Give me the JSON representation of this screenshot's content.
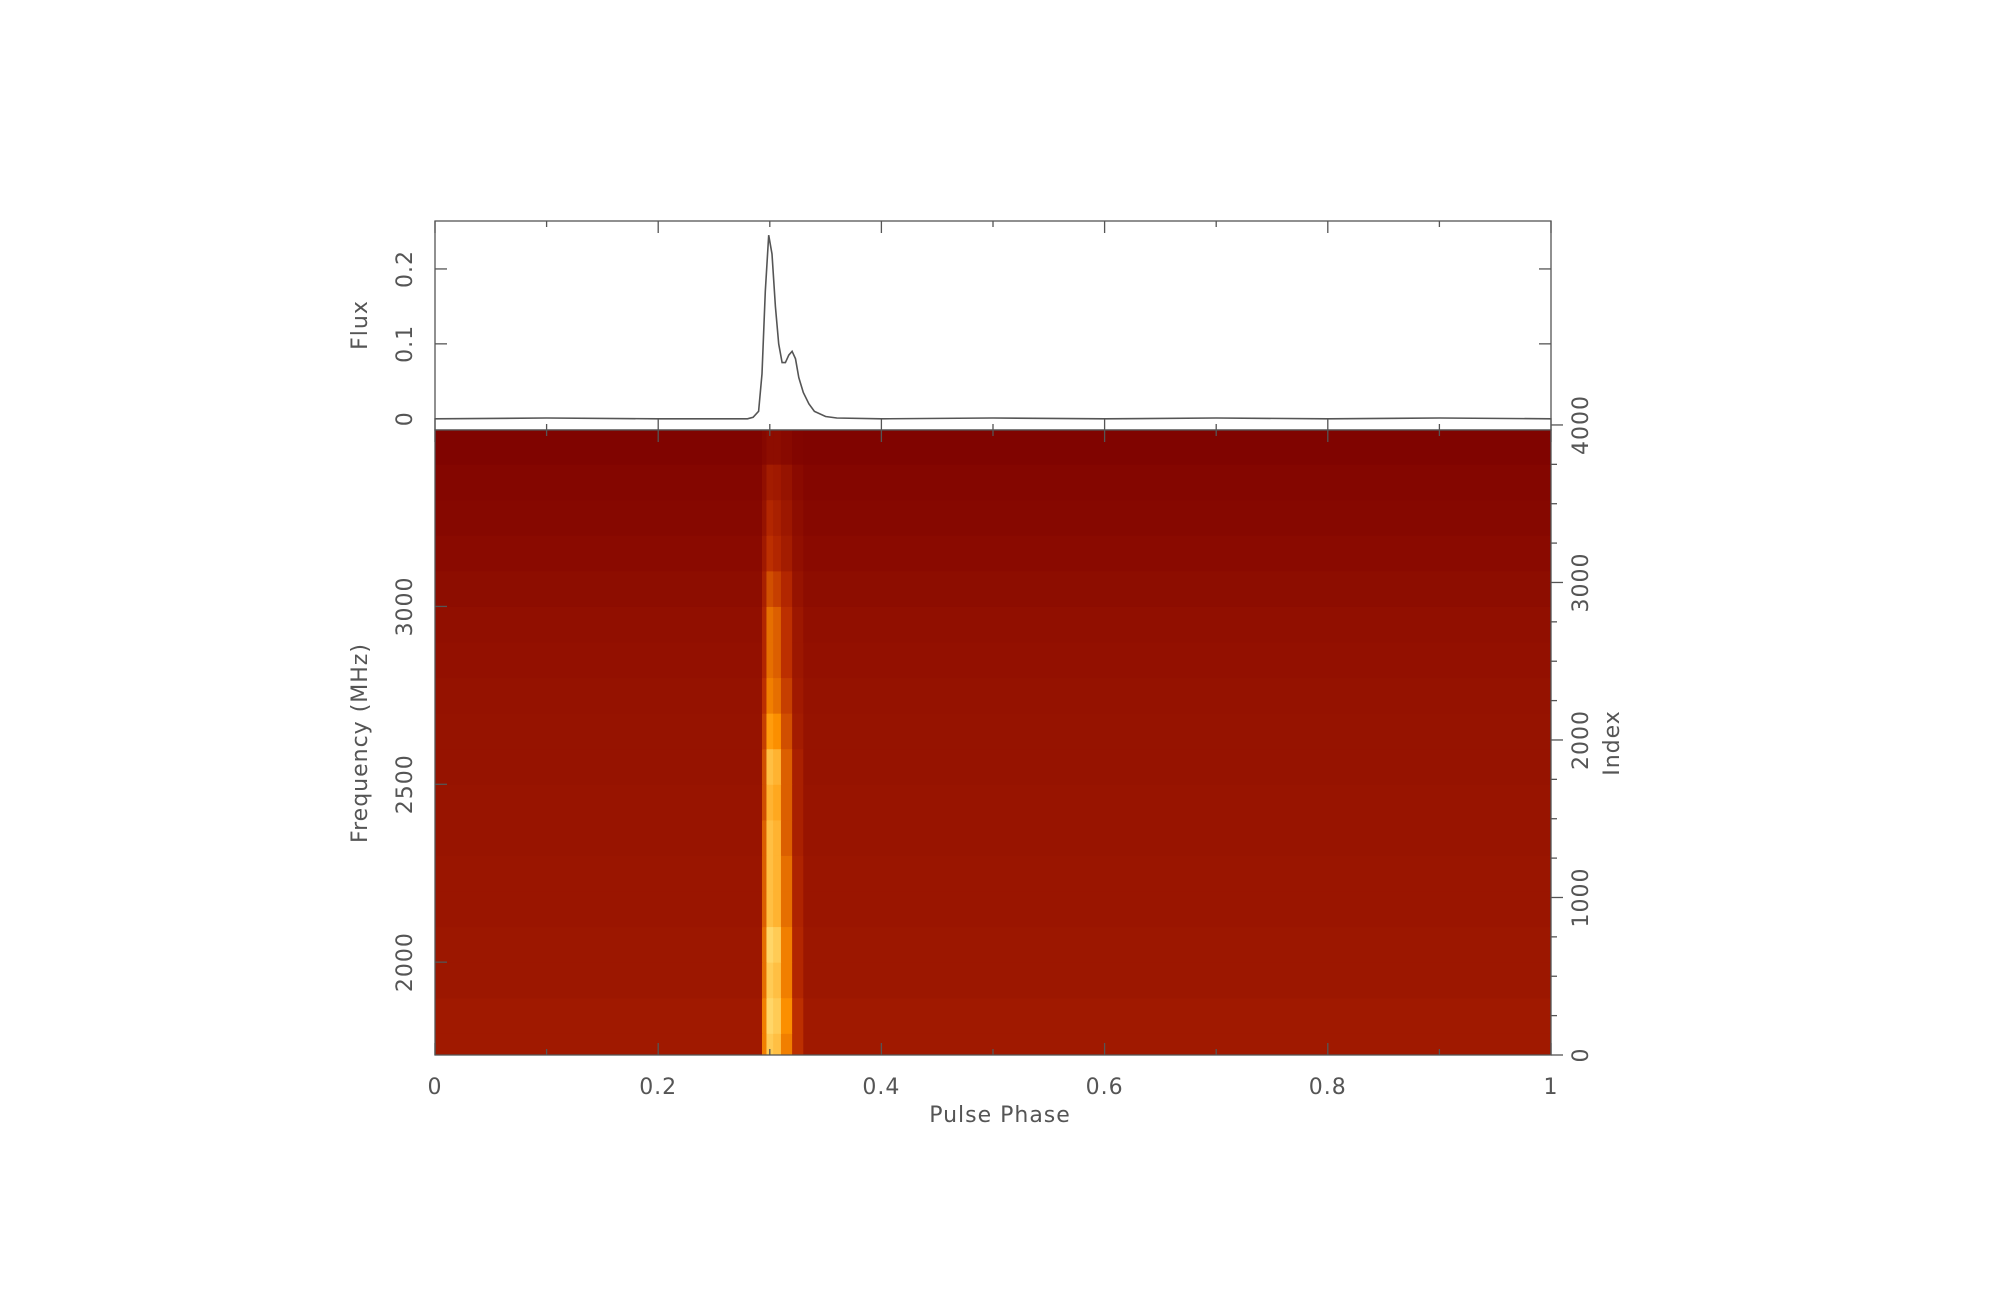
{
  "chart_data": [
    {
      "type": "line",
      "ylabel": "Flux",
      "color": "#555555",
      "x": [
        0,
        0.1,
        0.2,
        0.28,
        0.285,
        0.29,
        0.293,
        0.296,
        0.299,
        0.302,
        0.305,
        0.308,
        0.311,
        0.314,
        0.317,
        0.32,
        0.323,
        0.326,
        0.33,
        0.335,
        0.34,
        0.35,
        0.36,
        0.4,
        0.5,
        0.6,
        0.7,
        0.8,
        0.9,
        1
      ],
      "values": [
        0,
        0.001,
        0,
        0,
        0.002,
        0.01,
        0.06,
        0.17,
        0.245,
        0.22,
        0.15,
        0.1,
        0.075,
        0.075,
        0.085,
        0.09,
        0.08,
        0.055,
        0.035,
        0.02,
        0.01,
        0.003,
        0.001,
        0,
        0.001,
        0,
        0.001,
        0,
        0.001,
        0
      ],
      "xlim": [
        0,
        1
      ],
      "xticks": [
        0,
        0.2,
        0.4,
        0.6,
        0.8,
        1
      ],
      "ylim": [
        -0.015,
        0.264
      ],
      "yticks": [
        0,
        0.1,
        0.2
      ]
    },
    {
      "type": "heatmap",
      "xlabel": "Pulse Phase",
      "ylabel": "Frequency (MHz)",
      "y2label": "Index",
      "xlim": [
        0,
        1
      ],
      "xticks": [
        0,
        0.2,
        0.4,
        0.6,
        0.8,
        1
      ],
      "ylim": [
        1739,
        3496
      ],
      "yticks": [
        2000,
        2500,
        3000
      ],
      "y2lim": [
        0,
        3968
      ],
      "y2ticks": [
        0,
        1000,
        2000,
        3000,
        4000
      ],
      "colormap": [
        "#7b0000",
        "#b82a00",
        "#ff9400",
        "#ffe27a"
      ],
      "x_edges": [
        0,
        0.293,
        0.297,
        0.303,
        0.31,
        0.32,
        0.33,
        1
      ],
      "y_edges": [
        1739,
        1800,
        1900,
        2000,
        2100,
        2200,
        2300,
        2400,
        2500,
        2600,
        2700,
        2800,
        2900,
        3000,
        3100,
        3200,
        3300,
        3400,
        3496
      ],
      "values": [
        [
          0.2,
          0.6,
          0.9,
          0.85,
          0.6,
          0.35,
          0.2
        ],
        [
          0.2,
          0.6,
          0.95,
          0.9,
          0.65,
          0.35,
          0.2
        ],
        [
          0.18,
          0.55,
          0.9,
          0.85,
          0.6,
          0.3,
          0.18
        ],
        [
          0.18,
          0.55,
          0.95,
          0.9,
          0.6,
          0.3,
          0.18
        ],
        [
          0.17,
          0.5,
          0.85,
          0.8,
          0.55,
          0.28,
          0.17
        ],
        [
          0.17,
          0.5,
          0.85,
          0.8,
          0.55,
          0.28,
          0.17
        ],
        [
          0.16,
          0.5,
          0.85,
          0.8,
          0.5,
          0.25,
          0.16
        ],
        [
          0.16,
          0.45,
          0.8,
          0.75,
          0.5,
          0.25,
          0.16
        ],
        [
          0.15,
          0.45,
          0.85,
          0.8,
          0.5,
          0.25,
          0.15
        ],
        [
          0.15,
          0.4,
          0.7,
          0.65,
          0.45,
          0.22,
          0.15
        ],
        [
          0.14,
          0.35,
          0.6,
          0.55,
          0.4,
          0.2,
          0.14
        ],
        [
          0.13,
          0.3,
          0.55,
          0.5,
          0.35,
          0.18,
          0.13
        ],
        [
          0.12,
          0.3,
          0.55,
          0.5,
          0.35,
          0.18,
          0.12
        ],
        [
          0.1,
          0.25,
          0.45,
          0.4,
          0.3,
          0.15,
          0.1
        ],
        [
          0.08,
          0.2,
          0.35,
          0.3,
          0.22,
          0.12,
          0.08
        ],
        [
          0.06,
          0.15,
          0.3,
          0.25,
          0.18,
          0.1,
          0.06
        ],
        [
          0.05,
          0.12,
          0.22,
          0.2,
          0.15,
          0.08,
          0.05
        ],
        [
          0.03,
          0.06,
          0.1,
          0.1,
          0.07,
          0.04,
          0.03
        ]
      ]
    }
  ]
}
